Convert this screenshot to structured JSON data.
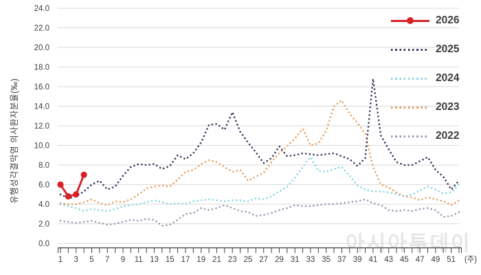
{
  "watermark": "아시아투데이",
  "chart_data": {
    "type": "line",
    "ylabel": "유행성각결막염 의사환자분율(‰)",
    "x_unit_label": "(주)",
    "xlim": [
      1,
      52
    ],
    "ylim": [
      0,
      24
    ],
    "grid": "horizontal",
    "legend_position": "top-right",
    "y_ticks": [
      0,
      2,
      4,
      6,
      8,
      10,
      12,
      14,
      16,
      18,
      20,
      22,
      24
    ],
    "x_tick_labels": [
      1,
      3,
      5,
      7,
      9,
      11,
      13,
      15,
      17,
      19,
      21,
      23,
      25,
      27,
      29,
      31,
      33,
      35,
      37,
      39,
      41,
      43,
      45,
      47,
      49,
      51
    ],
    "x": [
      1,
      2,
      3,
      4,
      5,
      6,
      7,
      8,
      9,
      10,
      11,
      12,
      13,
      14,
      15,
      16,
      17,
      18,
      19,
      20,
      21,
      22,
      23,
      24,
      25,
      26,
      27,
      28,
      29,
      30,
      31,
      32,
      33,
      34,
      35,
      36,
      37,
      38,
      39,
      40,
      41,
      42,
      43,
      44,
      45,
      46,
      47,
      48,
      49,
      50,
      51,
      52
    ],
    "series": [
      {
        "name": "2026",
        "color": "#d92027",
        "style": "solid-marker",
        "weeks": [
          1,
          2,
          3,
          4
        ],
        "values": [
          6.0,
          4.8,
          5.0,
          7.0
        ]
      },
      {
        "name": "2025",
        "color": "#3a3a64",
        "style": "dotted",
        "values": [
          5.0,
          4.6,
          4.8,
          5.3,
          6.0,
          6.4,
          5.5,
          5.8,
          6.9,
          7.8,
          8.1,
          8.0,
          8.1,
          7.6,
          7.9,
          9.0,
          8.6,
          9.2,
          10.3,
          12.1,
          12.2,
          11.6,
          13.4,
          11.4,
          10.3,
          9.3,
          8.2,
          8.7,
          9.9,
          8.9,
          9.0,
          9.2,
          9.1,
          9.0,
          9.1,
          9.2,
          8.9,
          8.6,
          7.9,
          8.7,
          16.8,
          11.0,
          9.6,
          8.3,
          8.0,
          8.0,
          8.4,
          8.8,
          7.5,
          6.8,
          5.5,
          6.4
        ]
      },
      {
        "name": "2024",
        "color": "#8fd5e5",
        "style": "dotted",
        "values": [
          4.0,
          3.8,
          3.6,
          3.3,
          3.5,
          3.4,
          3.3,
          3.5,
          3.8,
          3.9,
          4.0,
          4.2,
          4.4,
          4.2,
          4.0,
          4.1,
          4.0,
          4.3,
          4.4,
          4.5,
          4.4,
          4.3,
          4.4,
          4.4,
          4.3,
          4.6,
          4.5,
          4.8,
          5.3,
          5.8,
          6.7,
          7.8,
          8.8,
          7.4,
          7.3,
          7.6,
          7.8,
          6.9,
          5.9,
          5.5,
          5.3,
          5.3,
          5.2,
          5.0,
          4.8,
          5.0,
          5.4,
          5.8,
          5.5,
          5.1,
          5.2,
          6.0
        ]
      },
      {
        "name": "2023",
        "color": "#e8a266",
        "style": "dotted",
        "values": [
          4.1,
          4.0,
          4.0,
          4.2,
          4.5,
          4.1,
          3.9,
          4.3,
          4.2,
          4.5,
          5.0,
          5.6,
          5.8,
          5.9,
          5.8,
          6.5,
          7.3,
          7.5,
          8.1,
          8.5,
          8.3,
          7.8,
          7.3,
          7.5,
          6.4,
          6.8,
          7.2,
          8.3,
          9.2,
          9.9,
          10.7,
          11.7,
          10.0,
          10.2,
          11.5,
          14.0,
          14.6,
          13.2,
          12.3,
          11.2,
          7.8,
          6.0,
          5.7,
          5.2,
          4.8,
          4.7,
          4.4,
          4.7,
          4.5,
          4.3,
          3.9,
          4.4
        ]
      },
      {
        "name": "2022",
        "color": "#9c9cb5",
        "style": "dotted",
        "values": [
          2.3,
          2.2,
          2.1,
          2.2,
          2.3,
          2.1,
          1.9,
          2.0,
          2.2,
          2.4,
          2.3,
          2.5,
          2.4,
          1.8,
          1.9,
          2.4,
          3.0,
          3.1,
          3.6,
          3.4,
          3.6,
          3.9,
          3.6,
          3.3,
          3.2,
          2.8,
          2.9,
          3.1,
          3.4,
          3.6,
          3.9,
          3.8,
          3.8,
          3.9,
          4.0,
          4.0,
          4.1,
          4.2,
          4.3,
          4.5,
          4.1,
          3.9,
          3.4,
          3.3,
          3.4,
          3.3,
          3.5,
          3.6,
          3.4,
          2.7,
          2.8,
          3.2
        ]
      }
    ]
  }
}
